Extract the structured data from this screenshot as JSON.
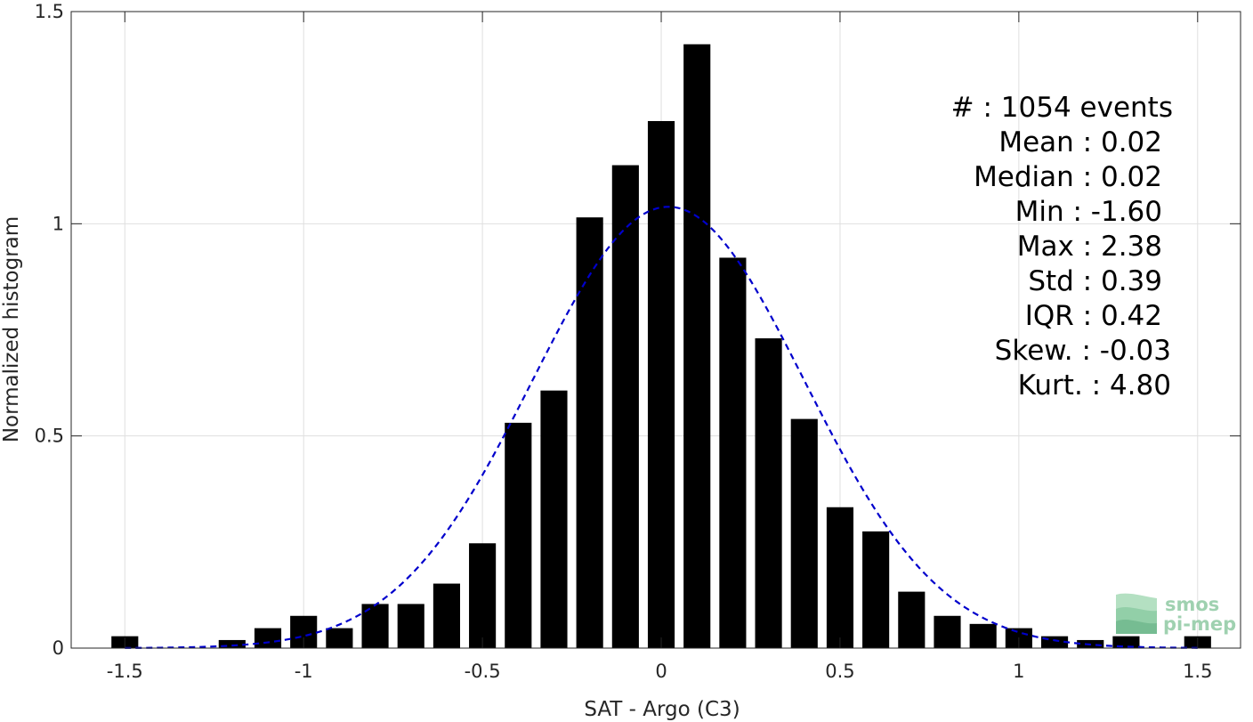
{
  "chart_data": {
    "type": "bar",
    "title": "",
    "xlabel": "SAT - Argo (C3)",
    "ylabel": "Normalized histogram",
    "xlim": [
      -1.65,
      1.62
    ],
    "ylim": [
      0,
      1.5
    ],
    "grid": true,
    "x_ticks": [
      -1.5,
      -1,
      -0.5,
      0,
      0.5,
      1,
      1.5
    ],
    "x_tick_labels": [
      "-1.5",
      "-1",
      "-0.5",
      "0",
      "0.5",
      "1",
      "1.5"
    ],
    "y_ticks": [
      0,
      0.5,
      1,
      1.5
    ],
    "y_tick_labels": [
      "0",
      "0.5",
      "1",
      "1.5"
    ],
    "bin_width": 0.1,
    "bar_color": "#000000",
    "x": [
      -1.5,
      -1.2,
      -1.1,
      -1.0,
      -0.9,
      -0.8,
      -0.7,
      -0.6,
      -0.5,
      -0.4,
      -0.3,
      -0.2,
      -0.1,
      0.0,
      0.1,
      0.2,
      0.3,
      0.4,
      0.5,
      0.6,
      0.7,
      0.8,
      0.9,
      1.0,
      1.1,
      1.2,
      1.3,
      1.5
    ],
    "values": [
      0.028,
      0.019,
      0.047,
      0.076,
      0.047,
      0.104,
      0.104,
      0.152,
      0.247,
      0.531,
      0.607,
      1.015,
      1.138,
      1.242,
      1.423,
      0.92,
      0.73,
      0.54,
      0.332,
      0.275,
      0.133,
      0.076,
      0.057,
      0.047,
      0.028,
      0.019,
      0.028,
      0.028
    ],
    "fit": {
      "type": "gaussian",
      "mean": 0.02,
      "std": 0.38,
      "peak": 1.04,
      "x_range": [
        -1.5,
        1.5
      ],
      "color": "#0000cc",
      "style": "dashed"
    },
    "annotations": [
      "#  : 1054 events",
      "Mean : 0.02",
      "Median : 0.02",
      "Min : -1.60",
      "Max : 2.38",
      "Std : 0.39",
      "IQR : 0.42",
      "Skew. : -0.03",
      "Kurt. : 4.80"
    ]
  },
  "logo": {
    "line1": "smos",
    "line2": "pi-mep"
  }
}
